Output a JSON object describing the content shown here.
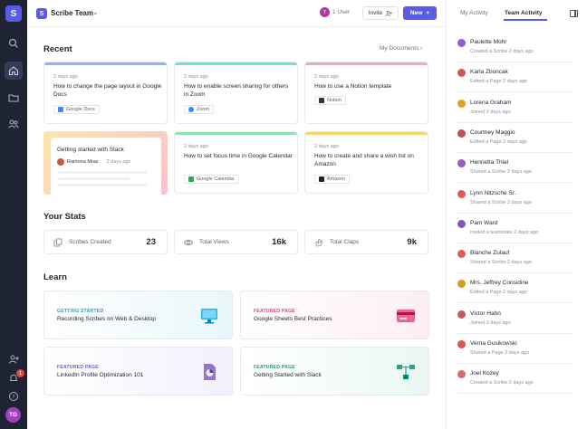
{
  "app": {
    "logo_letter": "S",
    "team_logo_letter": "S",
    "team_name": "Scribe Team",
    "user_count": "1 User",
    "user_avatar_letter": "T",
    "invite_label": "Invite",
    "new_label": "New",
    "user_initials": "TG",
    "notification_count": "1",
    "accent": "#5b5ce6"
  },
  "recent": {
    "title": "Recent",
    "my_documents": "My Documents",
    "cards": [
      {
        "date": "2 days ago",
        "title": "How to change the page layout in Google Docs",
        "app": "Google Docs",
        "bar": "#8ab4f8",
        "icon": "#4285f4"
      },
      {
        "date": "2 days ago",
        "title": "How to enable screen sharing for others in Zoom",
        "app": "Zoom",
        "bar": "#6fe0e0",
        "icon": "#2d8cff"
      },
      {
        "date": "2 days ago",
        "title": "How to use a Notion template",
        "app": "Notion",
        "bar": "#f4a6c6",
        "icon": "#333333"
      },
      {
        "date": "2 days ago",
        "title": "How to set focus time in Google Calendar",
        "app": "Google Calendar",
        "bar": "#8fe3b0",
        "icon": "#34a853"
      },
      {
        "date": "2 days ago",
        "title": "How to create and share a wish list on Amazon",
        "app": "Amazon",
        "bar": "#f6d36b",
        "icon": "#222222"
      }
    ],
    "slack_card": {
      "title": "Getting started with Slack",
      "author": "Ramona Mraz",
      "date": "2 days ago"
    }
  },
  "stats": {
    "title": "Your Stats",
    "items": [
      {
        "label": "Scribes Created",
        "value": "23"
      },
      {
        "label": "Total Views",
        "value": "16k"
      },
      {
        "label": "Total Claps",
        "value": "9k"
      }
    ]
  },
  "learn": {
    "title": "Learn",
    "items": [
      {
        "kicker": "GETTING STARTED",
        "title": "Recording Scribes on Web & Desktop",
        "color": "#20a3b8"
      },
      {
        "kicker": "FEATURED PAGE",
        "title": "Google Sheets Best Practices",
        "color": "#d6407a"
      },
      {
        "kicker": "FEATURED PAGE",
        "title": "LinkedIn Profile Optimization 101",
        "color": "#5b5ce6"
      },
      {
        "kicker": "FEATURED PAGE",
        "title": "Getting Started with Slack",
        "color": "#1f9d6b"
      }
    ]
  },
  "activity": {
    "tab_my": "My Activity",
    "tab_team": "Team Activity",
    "items": [
      {
        "name": "Paulette Mohr",
        "detail": "Created a Scribe 2 days ago",
        "color": "#8e5bd9"
      },
      {
        "name": "Karla Zboncak",
        "detail": "Edited a Page 2 days ago",
        "color": "#d9534f"
      },
      {
        "name": "Lorena Graham",
        "detail": "Joined 2 days ago",
        "color": "#e0a020"
      },
      {
        "name": "Courtney Maggio",
        "detail": "Edited a Page 2 days ago",
        "color": "#c0504d"
      },
      {
        "name": "Henrietta Thiel",
        "detail": "Shared a Scribe 2 days ago",
        "color": "#9b59b6"
      },
      {
        "name": "Lynn Nitzsche Sr.",
        "detail": "Shared a Scribe 2 days ago",
        "color": "#e05a4f"
      },
      {
        "name": "Pam Ward",
        "detail": "Invited a teammate 2 days ago",
        "color": "#7e57c2"
      },
      {
        "name": "Blanche Zulauf",
        "detail": "Shared a Scribe 2 days ago",
        "color": "#e35d55"
      },
      {
        "name": "Mrs. Jeffrey Considine",
        "detail": "Edited a Page 2 days ago",
        "color": "#d4a017"
      },
      {
        "name": "Victor Hahn",
        "detail": "Joined 2 days ago",
        "color": "#c75b5b"
      },
      {
        "name": "Verna Gusikowski",
        "detail": "Shared a Page 2 days ago",
        "color": "#d9534f"
      },
      {
        "name": "Joel Kozey",
        "detail": "Created a Scribe 2 days ago",
        "color": "#e06666"
      }
    ]
  }
}
